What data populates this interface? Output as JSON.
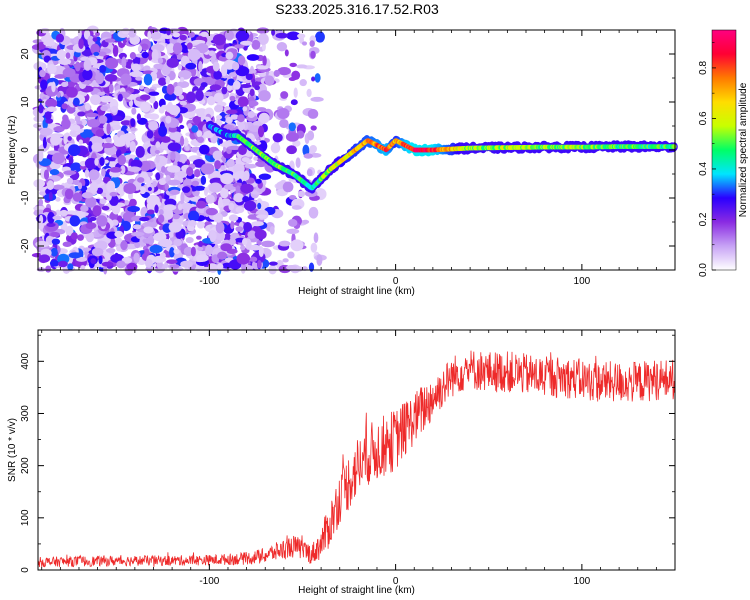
{
  "figure_title": "S233.2025.316.17.52.R03",
  "chart_data": [
    {
      "type": "heatmap",
      "title": "",
      "xlabel": "Height of straight line (km)",
      "ylabel": "Frequency (Hz)",
      "xlim": [
        -192,
        150
      ],
      "ylim": [
        -25,
        25
      ],
      "xticks": [
        -100,
        0,
        100
      ],
      "yticks": [
        -20,
        -10,
        0,
        10,
        20
      ],
      "colorbar": {
        "label": "Normalized spectral amplitude",
        "range": [
          0,
          0.95
        ],
        "ticks": [
          "0.0",
          "0.2",
          "0.4",
          "0.6",
          "0.8"
        ],
        "colors": [
          "#ffffff",
          "#c7a2f5",
          "#8a2be2",
          "#2a00ff",
          "#00e5ff",
          "#00ff66",
          "#c8ff00",
          "#ffdd00",
          "#ff7a00",
          "#ff0033",
          "#ff0080"
        ]
      },
      "ridge": {
        "x": [
          -100,
          -90,
          -85,
          -75,
          -65,
          -55,
          -45,
          -40,
          -35,
          -25,
          -15,
          -10,
          -5,
          0,
          5,
          10,
          20,
          40,
          60,
          80,
          100,
          120,
          150
        ],
        "y": [
          5,
          3,
          3,
          0,
          -3,
          -5,
          -8,
          -6,
          -4,
          -1,
          2,
          1,
          0,
          2,
          1,
          0,
          0,
          0.4,
          0.5,
          0.6,
          0.6,
          0.7,
          0.7
        ],
        "amplitude": [
          0.35,
          0.35,
          0.45,
          0.55,
          0.55,
          0.5,
          0.45,
          0.5,
          0.6,
          0.7,
          0.75,
          0.8,
          0.85,
          0.7,
          0.85,
          0.9,
          0.9,
          0.55,
          0.6,
          0.55,
          0.55,
          0.5,
          0.5
        ]
      },
      "noise_region": {
        "x_range": [
          -192,
          -60
        ],
        "freq_range": [
          -25,
          25
        ],
        "amplitude_range": [
          0.05,
          0.35
        ]
      }
    },
    {
      "type": "line",
      "title": "",
      "xlabel": "Height of straight line (km)",
      "ylabel": "SNR (10 * v/v)",
      "xlim": [
        -192,
        150
      ],
      "ylim": [
        0,
        460
      ],
      "xticks": [
        -100,
        0,
        100
      ],
      "yticks": [
        0,
        100,
        200,
        300,
        400
      ],
      "color": "#ee2a2a",
      "series": [
        {
          "name": "SNR",
          "x": [
            -192,
            -180,
            -160,
            -140,
            -120,
            -100,
            -80,
            -70,
            -60,
            -55,
            -50,
            -45,
            -40,
            -35,
            -30,
            -25,
            -20,
            -15,
            -10,
            -5,
            0,
            5,
            10,
            15,
            20,
            25,
            30,
            35,
            40,
            50,
            60,
            70,
            80,
            90,
            100,
            110,
            120,
            130,
            140,
            150
          ],
          "y": [
            15,
            16,
            17,
            18,
            18,
            19,
            22,
            28,
            40,
            45,
            40,
            30,
            50,
            90,
            140,
            170,
            200,
            220,
            230,
            240,
            250,
            270,
            290,
            310,
            330,
            350,
            370,
            380,
            385,
            380,
            380,
            375,
            370,
            370,
            365,
            360,
            360,
            360,
            365,
            365
          ],
          "noise_amplitude": [
            10,
            10,
            10,
            10,
            10,
            10,
            12,
            15,
            20,
            22,
            20,
            20,
            30,
            45,
            50,
            55,
            60,
            60,
            60,
            60,
            60,
            55,
            50,
            50,
            45,
            40,
            40,
            40,
            40,
            40,
            40,
            40,
            40,
            40,
            40,
            40,
            40,
            40,
            40,
            40
          ]
        }
      ]
    }
  ]
}
